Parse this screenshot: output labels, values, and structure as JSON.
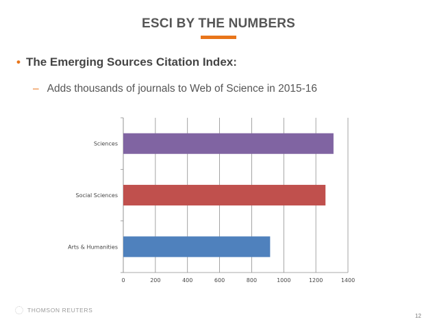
{
  "slide": {
    "title": "ESCI BY THE NUMBERS",
    "bullet": "The Emerging Sources Citation Index:",
    "sub_bullet": "Adds thousands of journals to Web of Science in 2015-16",
    "bullet_marker": "•",
    "sub_bullet_marker": "–",
    "footer_logo": "THOMSON REUTERS",
    "page_number": "12"
  },
  "colors": {
    "accent": "#e8751a"
  },
  "chart_data": {
    "type": "bar",
    "orientation": "horizontal",
    "categories": [
      "Arts & Humanities",
      "Social Sciences",
      "Sciences"
    ],
    "values": [
      915,
      1260,
      1310
    ],
    "colors": [
      "#4f81bd",
      "#c0504d",
      "#8064a2"
    ],
    "xlim": [
      0,
      1400
    ],
    "x_ticks": [
      "0",
      "200",
      "400",
      "600",
      "800",
      "1000",
      "1200",
      "1400"
    ],
    "grid": true,
    "legend": "none",
    "title": "",
    "xlabel": "",
    "ylabel": ""
  }
}
